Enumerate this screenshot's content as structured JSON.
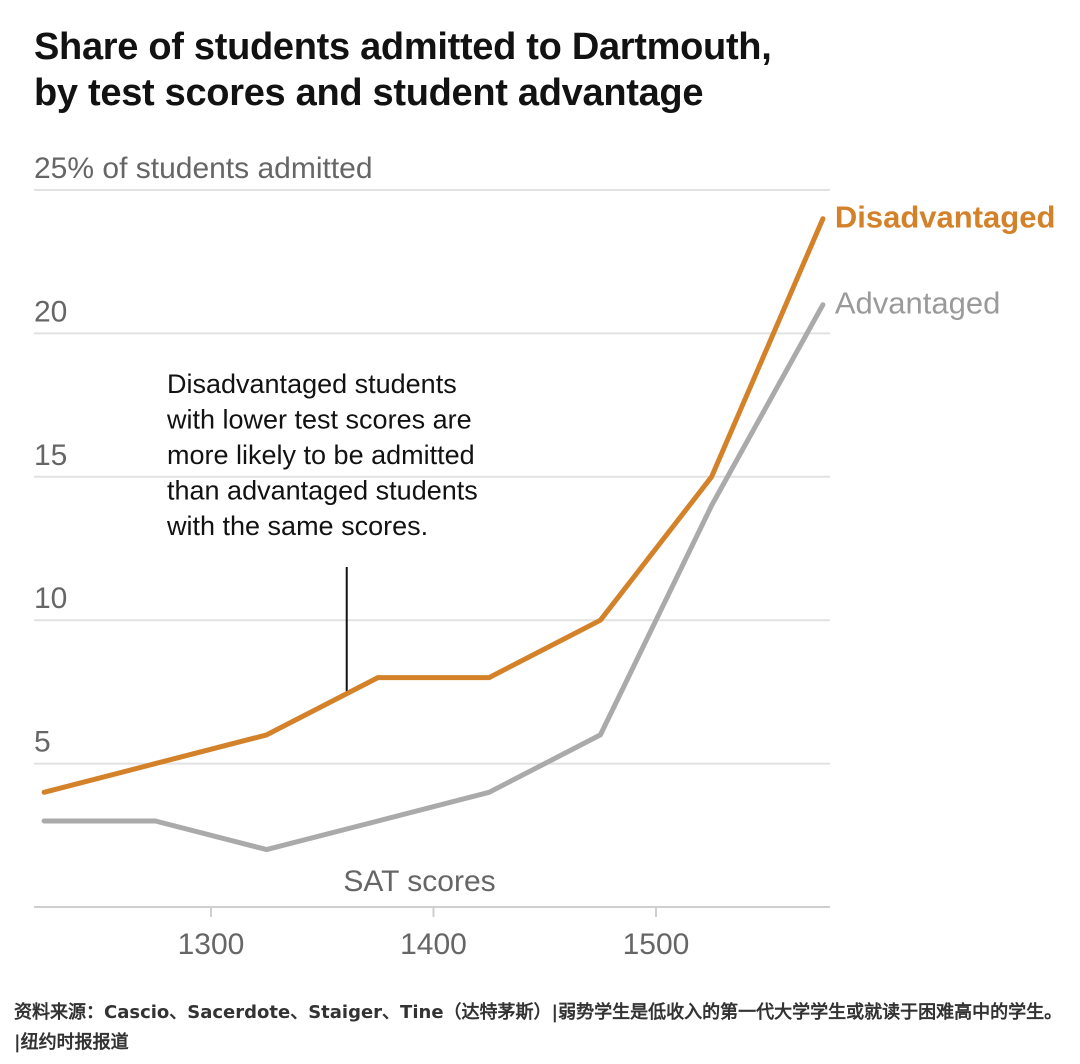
{
  "header": {
    "title_line1": "Share of students admitted to Dartmouth,",
    "title_line2": "by test scores and student advantage"
  },
  "chart_data": {
    "type": "line",
    "title": "Share of students admitted to Dartmouth, by test scores and student advantage",
    "y_axis_label": "25% of students admitted",
    "xlabel": "SAT scores",
    "x_ticks": [
      1300,
      1400,
      1500
    ],
    "y_ticks": [
      5,
      10,
      15,
      20,
      25
    ],
    "y_tick_labels": [
      "5",
      "10",
      "15",
      "20",
      "25% of students admitted"
    ],
    "xlim": [
      1220,
      1575
    ],
    "ylim": [
      0,
      25
    ],
    "grid": true,
    "x": [
      1225,
      1275,
      1325,
      1375,
      1425,
      1475,
      1525,
      1575
    ],
    "series": [
      {
        "name": "Disadvantaged",
        "color": "#d4822a",
        "values": [
          4,
          5,
          6,
          8,
          8,
          10,
          15,
          24
        ]
      },
      {
        "name": "Advantaged",
        "color": "#aaaaaa",
        "values": [
          3,
          3,
          2,
          3,
          4,
          6,
          14,
          21
        ]
      }
    ],
    "annotation": {
      "lines": [
        "Disadvantaged students",
        "with lower test scores are",
        "more likely to be admitted",
        "than advantaged students",
        "with the same scores."
      ],
      "x": 1361,
      "y": 7.4
    }
  },
  "footer": {
    "source": "资料来源：Cascio、Sacerdote、Staiger、Tine（达特茅斯）|弱势学生是低收入的第一代大学学生或就读于困难高中的学生。 |纽约时报报道"
  },
  "colors": {
    "grid": "#e2e2e2",
    "axis_text": "#666666",
    "baseline": "#cfcfcf"
  }
}
